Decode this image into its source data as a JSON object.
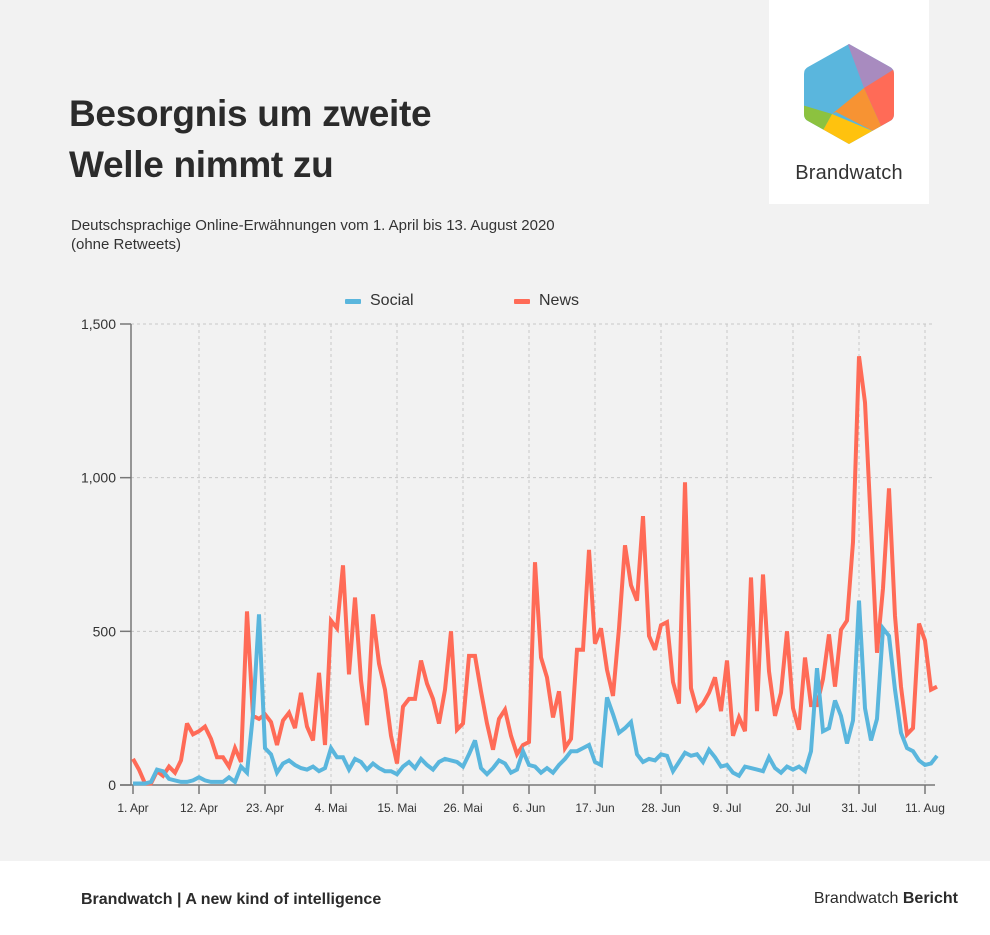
{
  "header": {
    "title_line1": "Besorgnis um zweite",
    "title_line2": "Welle nimmt zu",
    "subtitle_line1": "Deutschsprachige Online-Erwähnungen vom 1. April bis 13. August 2020",
    "subtitle_line2": "(ohne Retweets)"
  },
  "logo": {
    "text": "Brandwatch",
    "colors": [
      "#5ab6dd",
      "#a88bbf",
      "#ff6b57",
      "#f79333",
      "#ffc20e",
      "#8cc23f"
    ]
  },
  "footer": {
    "left": "Brandwatch | A new kind of intelligence",
    "right_regular": "Brandwatch",
    "right_bold": "Bericht"
  },
  "chart_data": {
    "type": "line",
    "title": "Besorgnis um zweite Welle nimmt zu",
    "xlabel": "",
    "ylabel": "",
    "x_start": "1. Apr",
    "x_unit": "day",
    "x_range_days": [
      0,
      134
    ],
    "ylim": [
      0,
      1500
    ],
    "yticks": [
      0,
      500,
      1000,
      1500
    ],
    "ytick_labels": [
      "0",
      "500",
      "1,000",
      "1,500"
    ],
    "xtick_days": [
      0,
      11,
      22,
      33,
      44,
      55,
      66,
      77,
      88,
      99,
      110,
      121,
      132
    ],
    "xtick_labels": [
      "1. Apr",
      "12. Apr",
      "23. Apr",
      "4. Mai",
      "15. Mai",
      "26. Mai",
      "6. Jun",
      "17. Jun",
      "28. Jun",
      "9. Jul",
      "20. Jul",
      "31. Jul",
      "11. Aug"
    ],
    "grid": true,
    "legend_position": "top",
    "series": [
      {
        "name": "Social",
        "color": "#5ab6dd",
        "values": [
          5,
          5,
          5,
          10,
          50,
          45,
          20,
          15,
          10,
          10,
          15,
          25,
          15,
          10,
          10,
          10,
          25,
          10,
          60,
          40,
          230,
          555,
          120,
          100,
          40,
          70,
          80,
          65,
          55,
          50,
          60,
          45,
          55,
          120,
          90,
          90,
          50,
          85,
          75,
          50,
          70,
          55,
          45,
          45,
          35,
          60,
          75,
          55,
          85,
          65,
          50,
          75,
          85,
          80,
          75,
          60,
          100,
          145,
          55,
          35,
          55,
          80,
          70,
          40,
          50,
          110,
          65,
          60,
          40,
          55,
          40,
          65,
          85,
          110,
          110,
          120,
          130,
          75,
          65,
          285,
          230,
          170,
          185,
          205,
          100,
          75,
          85,
          80,
          100,
          95,
          45,
          75,
          105,
          95,
          100,
          75,
          115,
          90,
          60,
          65,
          40,
          30,
          60,
          55,
          50,
          45,
          90,
          55,
          40,
          60,
          50,
          60,
          45,
          110,
          380,
          175,
          185,
          275,
          225,
          135,
          210,
          600,
          250,
          145,
          215,
          510,
          485,
          310,
          170,
          120,
          110,
          80,
          65,
          70,
          95
        ]
      },
      {
        "name": "News",
        "color": "#ff6b57",
        "values": [
          85,
          50,
          5,
          5,
          45,
          30,
          60,
          40,
          80,
          200,
          165,
          175,
          190,
          150,
          90,
          90,
          60,
          120,
          75,
          565,
          225,
          215,
          230,
          205,
          130,
          210,
          235,
          185,
          300,
          190,
          145,
          365,
          130,
          535,
          510,
          715,
          360,
          610,
          340,
          195,
          555,
          395,
          310,
          160,
          70,
          255,
          280,
          280,
          405,
          330,
          280,
          200,
          310,
          500,
          180,
          200,
          420,
          420,
          305,
          200,
          115,
          215,
          245,
          160,
          100,
          130,
          140,
          725,
          415,
          350,
          220,
          305,
          120,
          150,
          440,
          440,
          765,
          460,
          510,
          375,
          290,
          510,
          780,
          650,
          600,
          875,
          485,
          440,
          520,
          530,
          335,
          265,
          985,
          315,
          245,
          265,
          300,
          350,
          240,
          405,
          160,
          220,
          175,
          675,
          240,
          685,
          370,
          225,
          300,
          500,
          250,
          180,
          415,
          260,
          260,
          345,
          490,
          320,
          505,
          535,
          790,
          1395,
          1245,
          840,
          430,
          640,
          965,
          550,
          320,
          165,
          185,
          525,
          470,
          310,
          320
        ]
      }
    ]
  }
}
